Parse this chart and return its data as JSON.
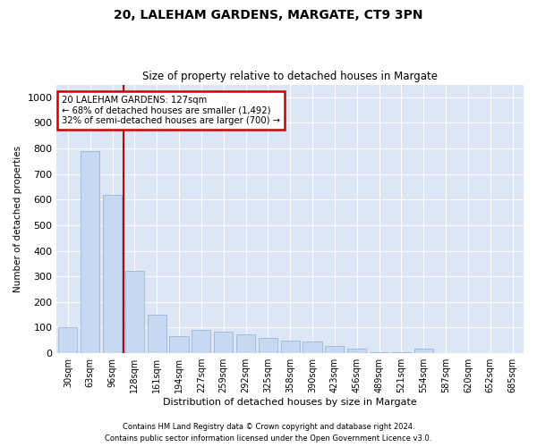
{
  "title1": "20, LALEHAM GARDENS, MARGATE, CT9 3PN",
  "title2": "Size of property relative to detached houses in Margate",
  "xlabel": "Distribution of detached houses by size in Margate",
  "ylabel": "Number of detached properties",
  "bar_color": "#c6d9f1",
  "bar_edge_color": "#9ab5d9",
  "bg_color": "#dce6f5",
  "grid_color": "#ffffff",
  "annotation_box_color": "#cc0000",
  "annotation_line_color": "#cc0000",
  "property_label": "20 LALEHAM GARDENS: 127sqm",
  "annotation_line1": "← 68% of detached houses are smaller (1,492)",
  "annotation_line2": "32% of semi-detached houses are larger (700) →",
  "categories": [
    "30sqm",
    "63sqm",
    "96sqm",
    "128sqm",
    "161sqm",
    "194sqm",
    "227sqm",
    "259sqm",
    "292sqm",
    "325sqm",
    "358sqm",
    "390sqm",
    "423sqm",
    "456sqm",
    "489sqm",
    "521sqm",
    "554sqm",
    "587sqm",
    "620sqm",
    "652sqm",
    "685sqm"
  ],
  "values": [
    100,
    790,
    620,
    320,
    150,
    65,
    90,
    85,
    75,
    60,
    50,
    45,
    28,
    18,
    5,
    3,
    18,
    2,
    1,
    1,
    1
  ],
  "ylim": [
    0,
    1050
  ],
  "yticks": [
    0,
    100,
    200,
    300,
    400,
    500,
    600,
    700,
    800,
    900,
    1000
  ],
  "footnote1": "Contains HM Land Registry data © Crown copyright and database right 2024.",
  "footnote2": "Contains public sector information licensed under the Open Government Licence v3.0."
}
